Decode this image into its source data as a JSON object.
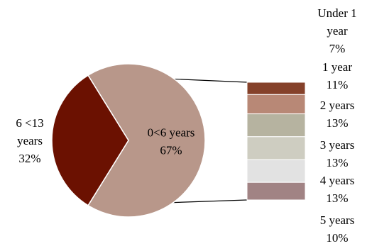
{
  "chart_data": {
    "type": "pie",
    "subtype": "bar-of-pie",
    "main_pie": {
      "slices": [
        {
          "label_lines": [
            "0<6 years",
            "67%"
          ],
          "value": 67,
          "color": "#b8978a",
          "expanded": true
        },
        {
          "label_lines": [
            "6 <13",
            "years",
            "32%"
          ],
          "value": 32,
          "color": "#6b1101"
        }
      ]
    },
    "breakdown_bar": {
      "parent": "0<6 years",
      "segments": [
        {
          "label_lines": [
            "Under 1",
            "year",
            "7%"
          ],
          "value": 7,
          "color": "#85412a"
        },
        {
          "label_lines": [
            "1 year",
            "11%"
          ],
          "value": 11,
          "color": "#b88876"
        },
        {
          "label_lines": [
            "2 years",
            "13%"
          ],
          "value": 13,
          "color": "#b6b3a0"
        },
        {
          "label_lines": [
            "3 years",
            "13%"
          ],
          "value": 13,
          "color": "#cecdc1"
        },
        {
          "label_lines": [
            "4 years",
            "13%"
          ],
          "value": 13,
          "color": "#e2e2e2"
        },
        {
          "label_lines": [
            "5 years",
            "10%"
          ],
          "value": 10,
          "color": "#a18384"
        }
      ]
    },
    "legend": "none"
  }
}
